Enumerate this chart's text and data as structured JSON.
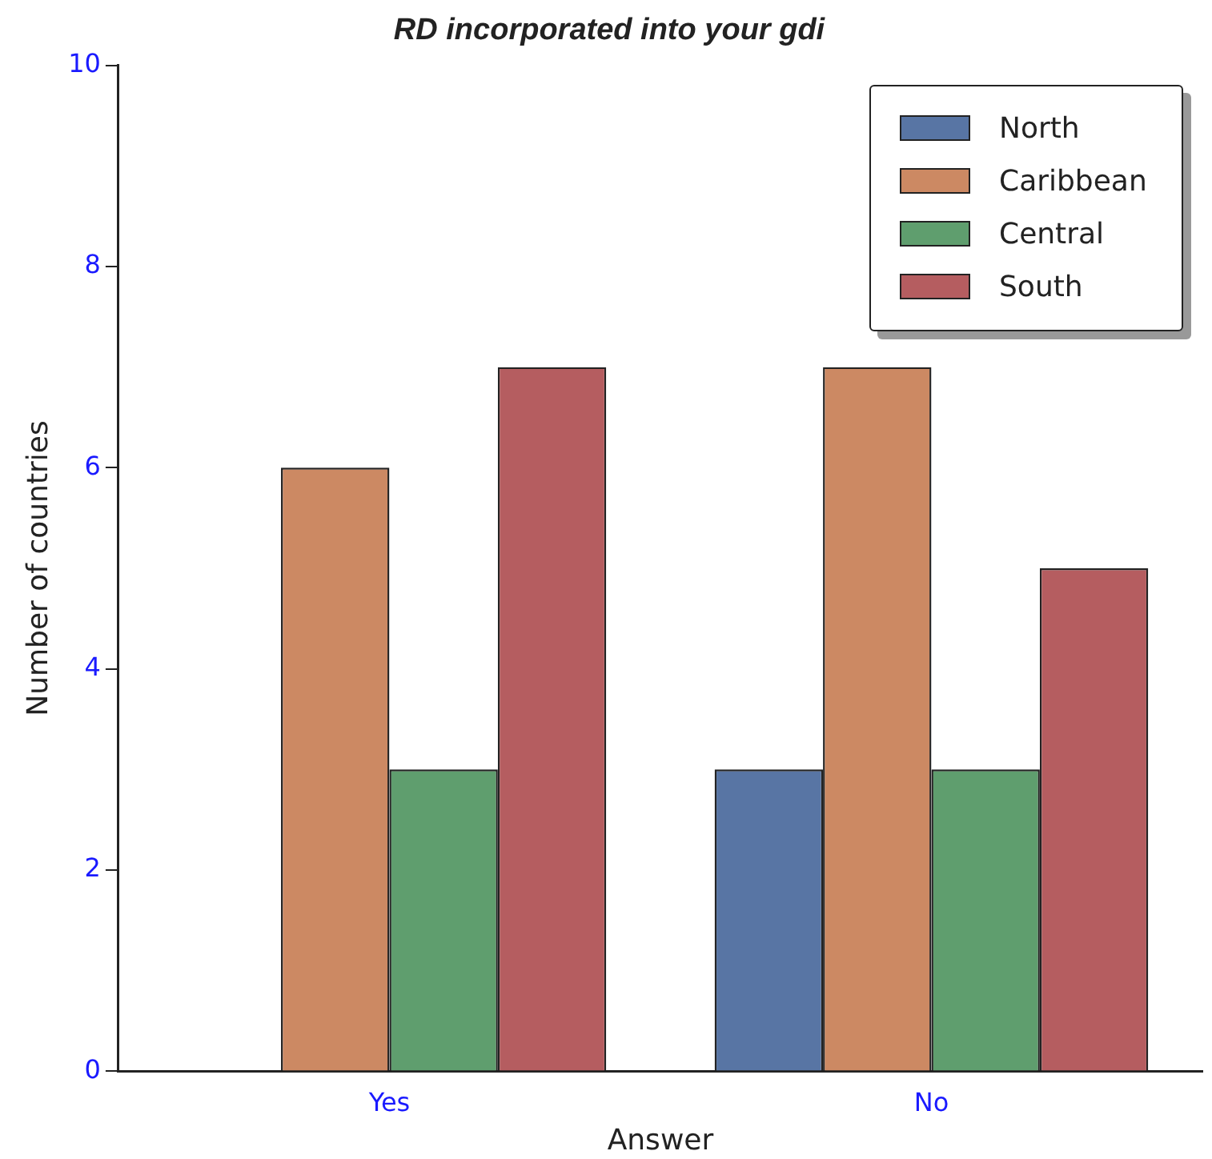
{
  "chart_data": {
    "type": "bar",
    "title": "RD incorporated into your gdi",
    "xlabel": "Answer",
    "ylabel": "Number of countries",
    "categories": [
      "Yes",
      "No"
    ],
    "series": [
      {
        "name": "North",
        "color": "#5875a4",
        "values": [
          0,
          3
        ]
      },
      {
        "name": "Caribbean",
        "color": "#cc8963",
        "values": [
          6,
          7
        ]
      },
      {
        "name": "Central",
        "color": "#5f9e6e",
        "values": [
          3,
          3
        ]
      },
      {
        "name": "South",
        "color": "#b55d60",
        "values": [
          7,
          5
        ]
      }
    ],
    "ylim": [
      0,
      10
    ],
    "yticks": [
      0,
      2,
      4,
      6,
      8,
      10
    ],
    "grid": false,
    "legend": "top right"
  }
}
